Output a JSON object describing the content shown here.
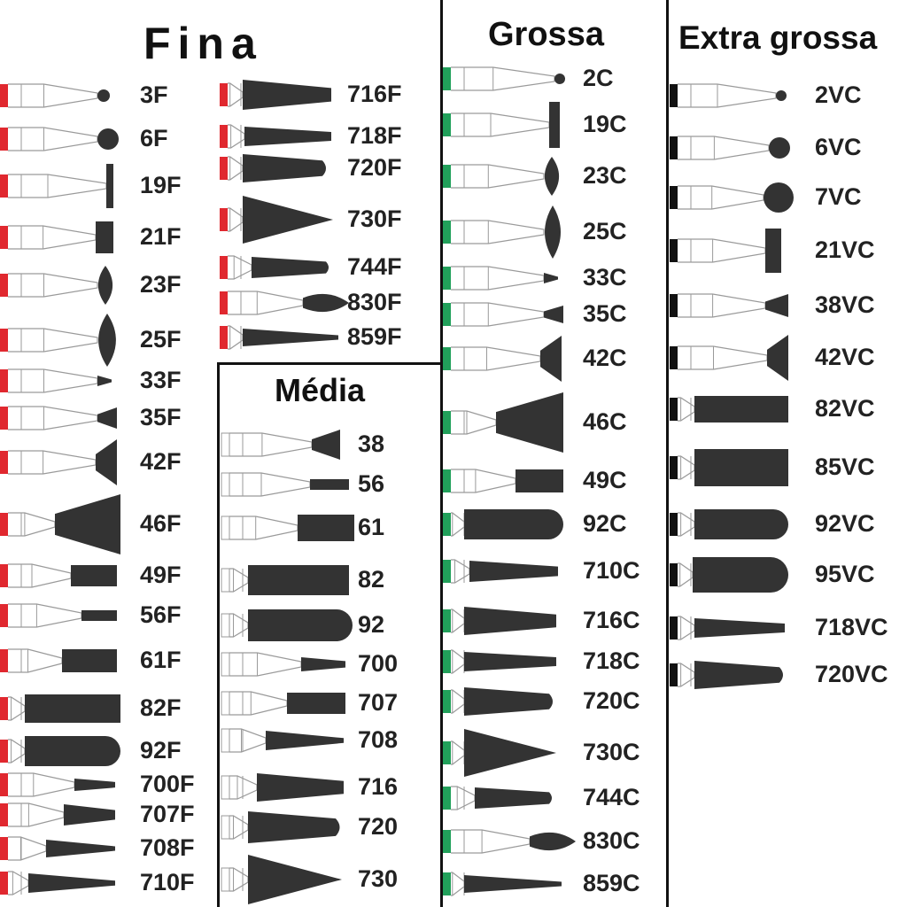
{
  "sections": {
    "fina": "Fina",
    "media": "Média",
    "grossa": "Grossa",
    "extra": "Extra grossa"
  },
  "colors": {
    "fina": "#e0282f",
    "media": "#ffffff",
    "grossa": "#21a05a",
    "extra": "#111111",
    "head": "#333333",
    "outline": "#9a9a9a"
  },
  "burs": {
    "fina_col1": [
      "3F",
      "6F",
      "19F",
      "21F",
      "23F",
      "25F",
      "33F",
      "35F",
      "42F",
      "46F",
      "49F",
      "56F",
      "61F",
      "82F",
      "92F",
      "700F",
      "707F",
      "708F",
      "710F"
    ],
    "fina_col2": [
      "716F",
      "718F",
      "720F",
      "730F",
      "744F",
      "830F",
      "859F"
    ],
    "media": [
      "38",
      "56",
      "61",
      "82",
      "92",
      "700",
      "707",
      "708",
      "716",
      "720",
      "730"
    ],
    "grossa": [
      "2C",
      "19C",
      "23C",
      "25C",
      "33C",
      "35C",
      "42C",
      "46C",
      "49C",
      "92C",
      "710C",
      "716C",
      "718C",
      "720C",
      "730C",
      "744C",
      "830C",
      "859C"
    ],
    "extra": [
      "2VC",
      "6VC",
      "7VC",
      "21VC",
      "38VC",
      "42VC",
      "82VC",
      "85VC",
      "92VC",
      "95VC",
      "718VC",
      "720VC"
    ]
  }
}
